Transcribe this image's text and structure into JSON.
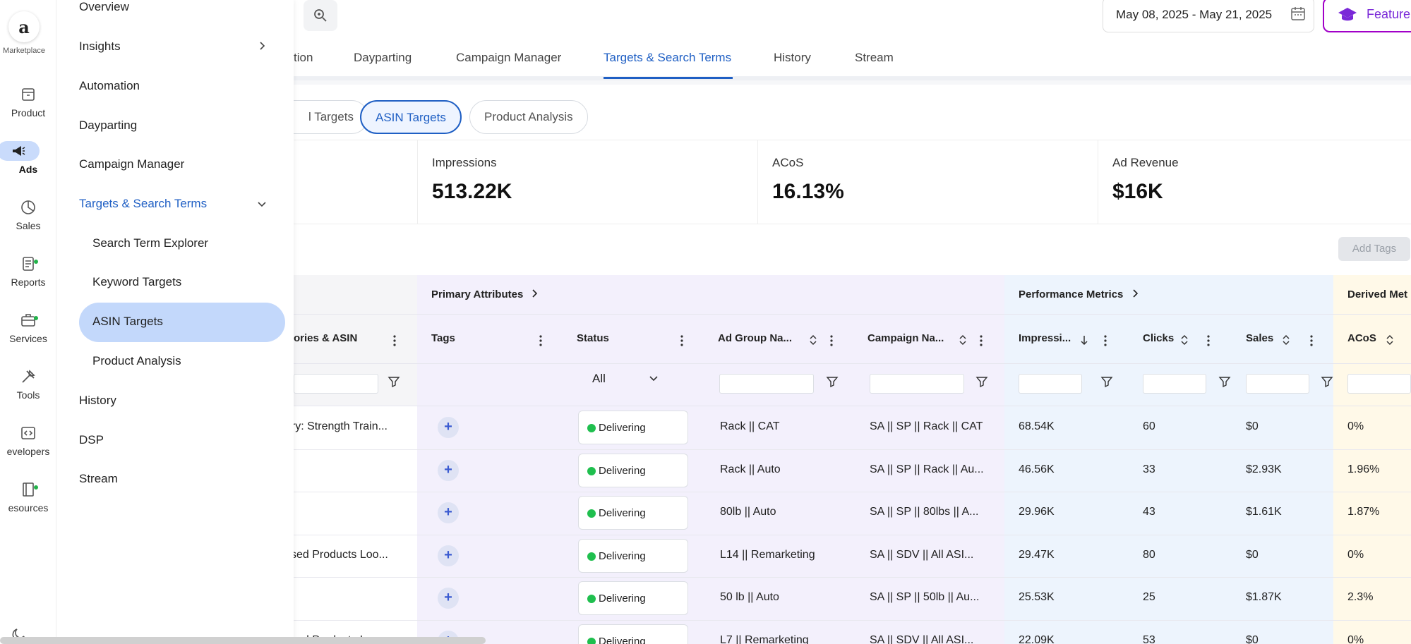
{
  "rail": {
    "logo_label": "Marketplace",
    "items": [
      {
        "label": "Product",
        "icon": "product-box-icon"
      },
      {
        "label": "Ads",
        "icon": "megaphone-icon"
      },
      {
        "label": "Sales",
        "icon": "pie-chart-icon"
      },
      {
        "label": "Reports",
        "icon": "report-icon"
      },
      {
        "label": "Services",
        "icon": "briefcase-icon"
      },
      {
        "label": "Tools",
        "icon": "tools-icon"
      },
      {
        "label": "evelopers",
        "icon": "code-icon"
      },
      {
        "label": "esources",
        "icon": "book-icon"
      }
    ]
  },
  "flyout": {
    "items": [
      "Overview",
      "Insights",
      "Automation",
      "Dayparting",
      "Campaign Manager",
      "Targets & Search Terms"
    ],
    "sub_items": [
      "Search Term Explorer",
      "Keyword Targets",
      "ASIN Targets",
      "Product Analysis"
    ],
    "bottom_items": [
      "History",
      "DSP",
      "Stream"
    ]
  },
  "topbar": {
    "date_range": "May 08, 2025 - May 21, 2025",
    "feature_label": "Feature"
  },
  "tabs": [
    "tion",
    "Dayparting",
    "Campaign Manager",
    "Targets & Search Terms",
    "History",
    "Stream"
  ],
  "subtabs": [
    "l Targets",
    "ASIN Targets",
    "Product Analysis"
  ],
  "kpis": [
    {
      "label": "Impressions",
      "value": "513.22K"
    },
    {
      "label": "ACoS",
      "value": "16.13%"
    },
    {
      "label": "Ad Revenue",
      "value": "$16K"
    }
  ],
  "add_tags_label": "Add Tags",
  "table": {
    "groups": [
      "Primary Attributes",
      "Performance Metrics",
      "Derived Met"
    ],
    "headers": [
      "ories & ASIN",
      "Tags",
      "Status",
      "Ad Group Na...",
      "Campaign Na...",
      "Impressi...",
      "Clicks",
      "Sales",
      "ACoS"
    ],
    "status_filter": "All",
    "rows": [
      {
        "asin": "ory: Strength Train...",
        "status": "Delivering",
        "adgroup": "Rack || CAT",
        "campaign": "SA || SP || Rack || CAT",
        "impr": "68.54K",
        "clicks": "60",
        "sales": "$0",
        "acos": "0%"
      },
      {
        "asin": "",
        "status": "Delivering",
        "adgroup": "Rack || Auto",
        "campaign": "SA || SP || Rack || Au...",
        "impr": "46.56K",
        "clicks": "33",
        "sales": "$2.93K",
        "acos": "1.96%"
      },
      {
        "asin": "",
        "status": "Delivering",
        "adgroup": "80lb || Auto",
        "campaign": "SA || SP || 80lbs || A...",
        "impr": "29.96K",
        "clicks": "43",
        "sales": "$1.61K",
        "acos": "1.87%"
      },
      {
        "asin": "tised Products Loo...",
        "status": "Delivering",
        "adgroup": "L14 || Remarketing",
        "campaign": "SA || SDV || All ASI...",
        "impr": "29.47K",
        "clicks": "80",
        "sales": "$0",
        "acos": "0%"
      },
      {
        "asin": "",
        "status": "Delivering",
        "adgroup": "50 lb || Auto",
        "campaign": "SA || SP || 50lb || Au...",
        "impr": "25.53K",
        "clicks": "25",
        "sales": "$1.87K",
        "acos": "2.3%"
      },
      {
        "asin": "tised Products Loo...",
        "status": "Delivering",
        "adgroup": "L7 || Remarketing",
        "campaign": "SA || SDV || All ASI...",
        "impr": "22.09K",
        "clicks": "53",
        "sales": "$0",
        "acos": "0%"
      }
    ]
  },
  "colors": {
    "accent": "#1f5fc4",
    "primary_group_bg": "#f1eefc",
    "perf_group_bg": "#eaf2fd",
    "derived_group_bg": "#fff8e6",
    "delivering": "#1fbf4e"
  }
}
